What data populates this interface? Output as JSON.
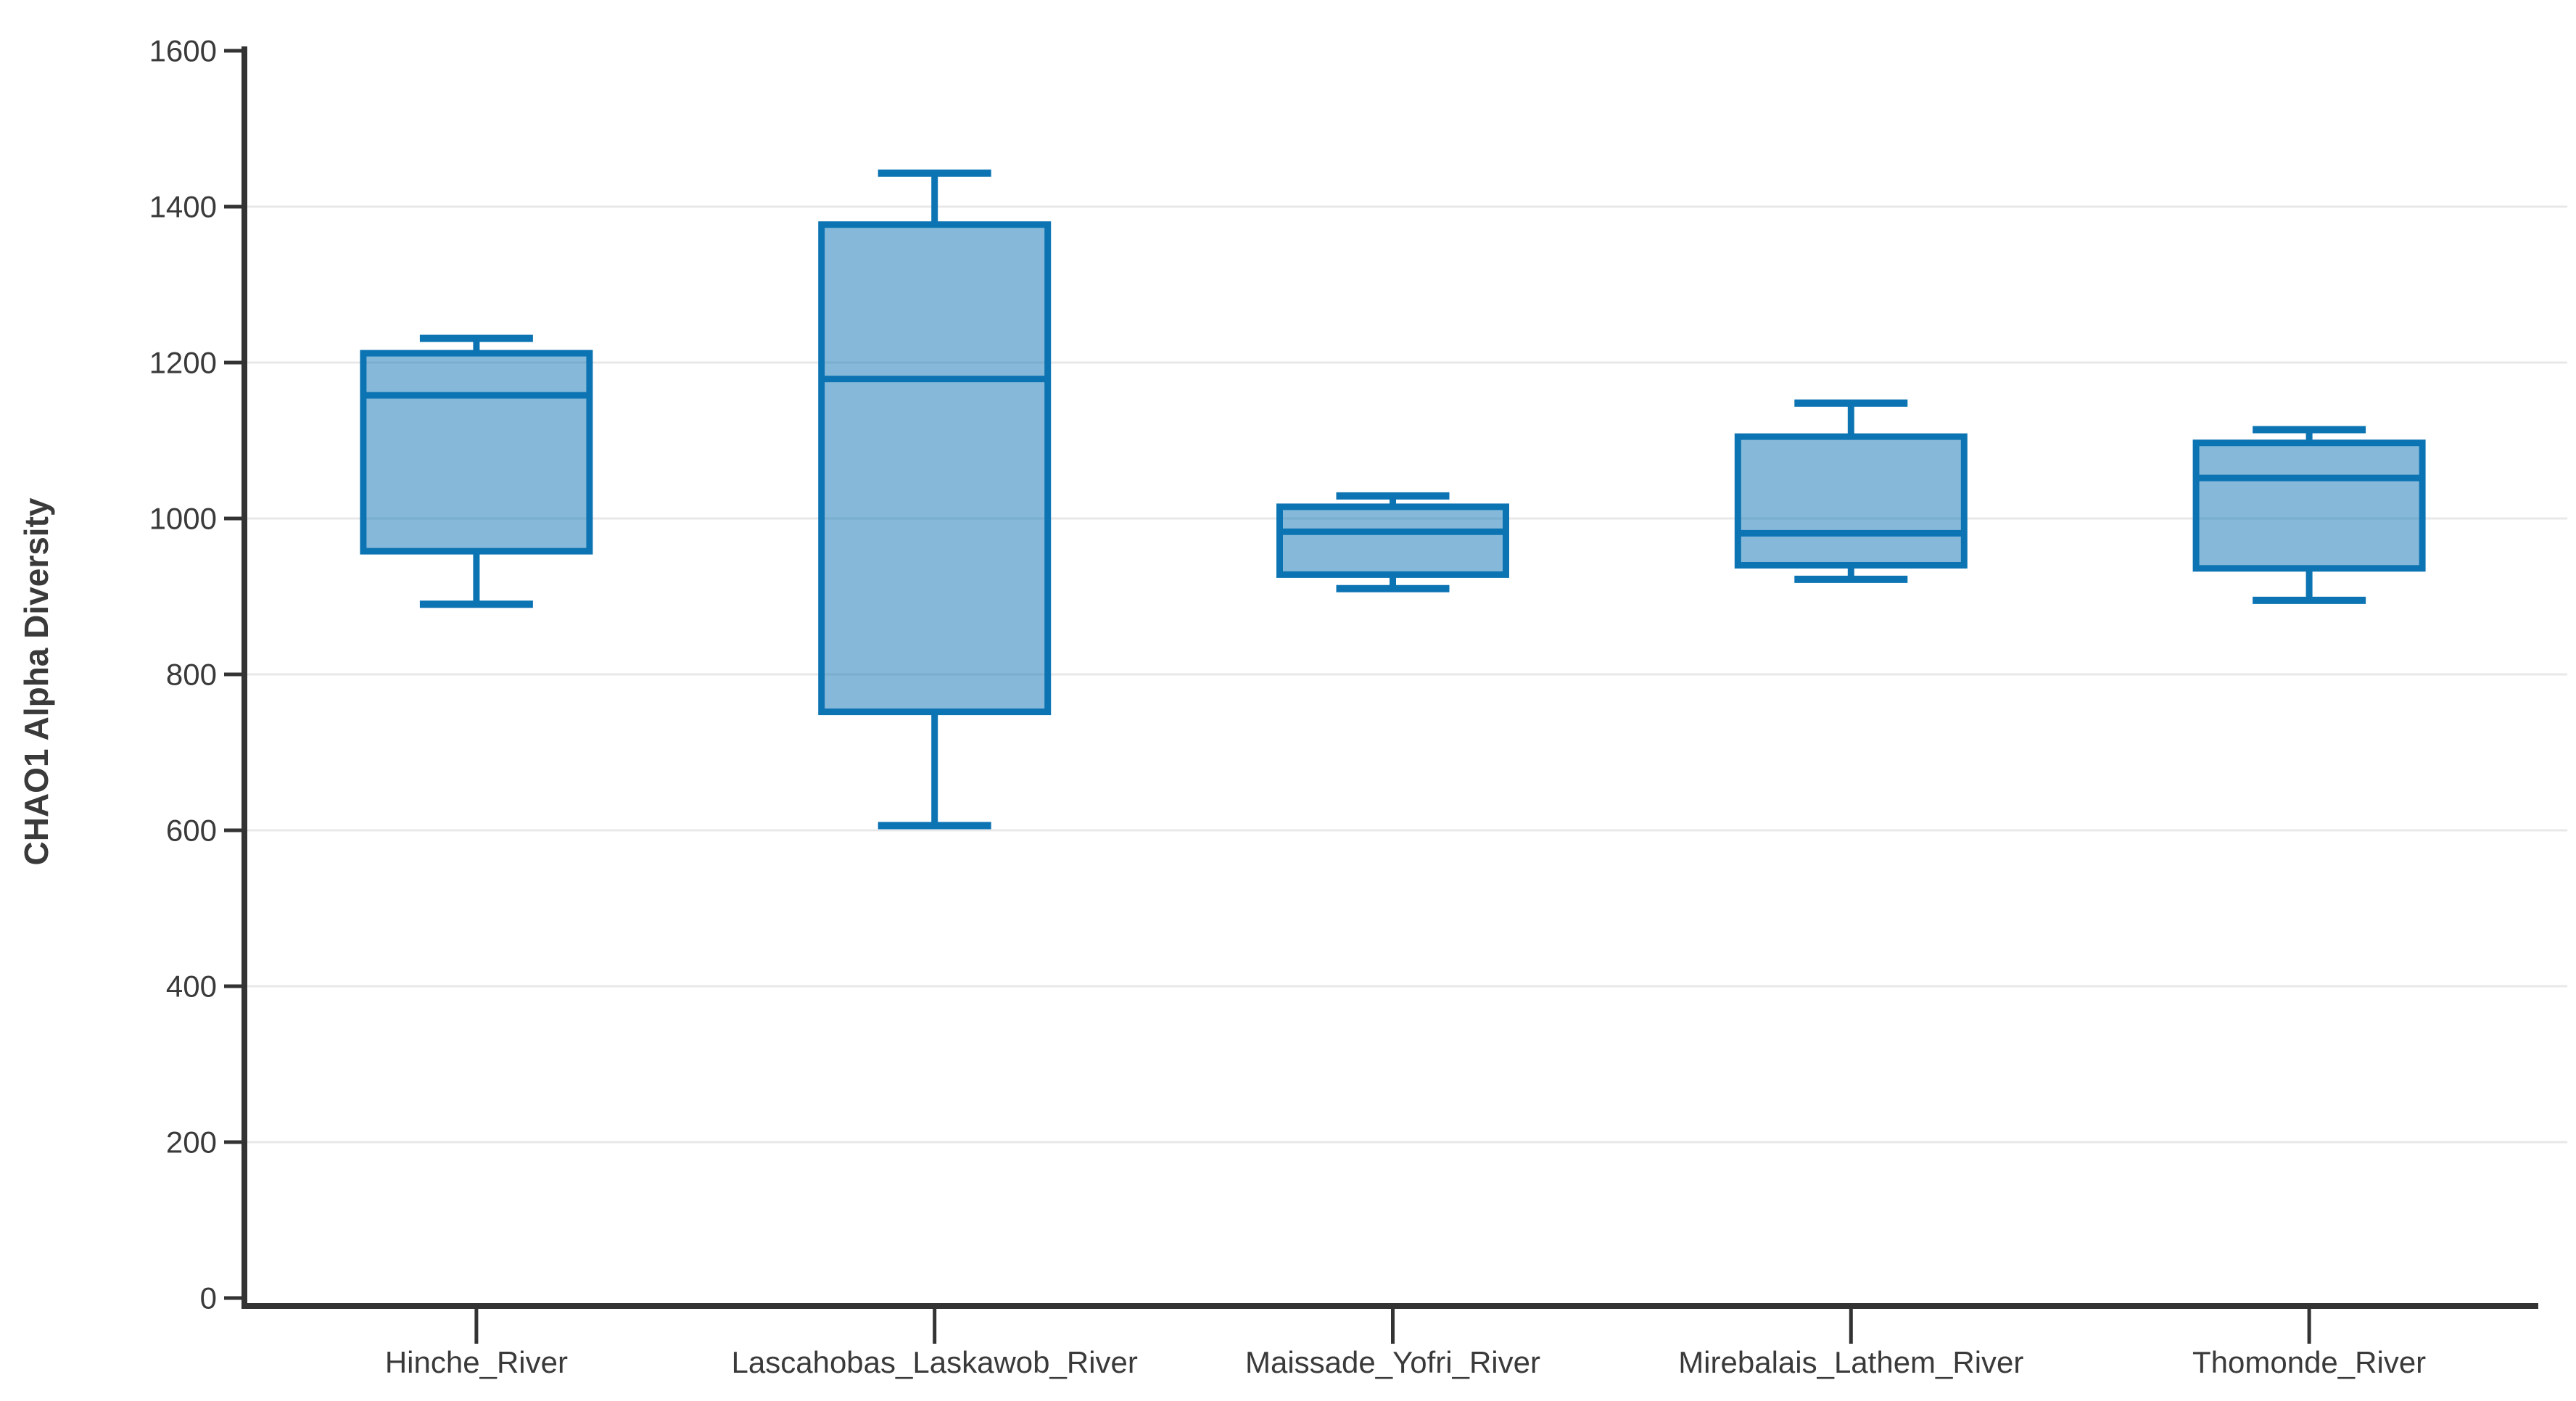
{
  "chart_data": {
    "type": "box",
    "title": "",
    "xlabel": "",
    "ylabel": "CHAO1 Alpha Diversity",
    "ylim": [
      0,
      1600
    ],
    "yticks": [
      0,
      200,
      400,
      600,
      800,
      1000,
      1200,
      1400,
      1600
    ],
    "grid": "horizontal",
    "legend": "none",
    "categories": [
      "Hinche_River",
      "Lascahobas_Laskawob_River",
      "Maissade_Yofri_River",
      "Mirebalais_Lathem_River",
      "Thomonde_River"
    ],
    "series": [
      {
        "name": "Hinche_River",
        "min": 890,
        "q1": 958,
        "median": 1158,
        "q3": 1212,
        "max": 1231
      },
      {
        "name": "Lascahobas_Laskawob_River",
        "min": 606,
        "q1": 752,
        "median": 1179,
        "q3": 1377,
        "max": 1443
      },
      {
        "name": "Maissade_Yofri_River",
        "min": 910,
        "q1": 928,
        "median": 983,
        "q3": 1015,
        "max": 1029
      },
      {
        "name": "Mirebalais_Lathem_River",
        "min": 922,
        "q1": 940,
        "median": 981,
        "q3": 1105,
        "max": 1148
      },
      {
        "name": "Thomonde_River",
        "min": 895,
        "q1": 936,
        "median": 1052,
        "q3": 1097,
        "max": 1114
      }
    ]
  },
  "colors": {
    "box_stroke": "#0d74b3",
    "box_fill": "#0d74b3",
    "box_fill_opacity": 0.5,
    "axis": "#333333",
    "grid": "#e8e8e8",
    "text": "#3a3a3a",
    "background": "#ffffff"
  }
}
